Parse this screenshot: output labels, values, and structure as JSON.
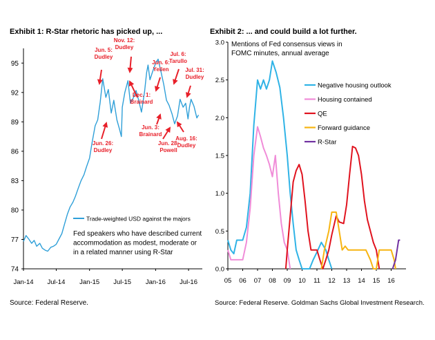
{
  "chart_data": [
    {
      "type": "line",
      "title": "Exhibit 1: R-Star rhetoric has picked up, ...",
      "source": "Source: Federal Reserve.",
      "xlabel": "",
      "ylabel": "",
      "x_ticks": [
        "Jan-14",
        "Jul-14",
        "Jan-15",
        "Jul-15",
        "Jan-16",
        "Jul-16"
      ],
      "y_ticks": [
        74,
        77,
        80,
        83,
        86,
        89,
        92,
        95
      ],
      "ylim": [
        74,
        96.5
      ],
      "xlim": [
        "2014-01-01",
        "2016-09-15"
      ],
      "grid": false,
      "legend_position": "bottom-right",
      "series": [
        {
          "name": "Trade-weighted USD against the majors",
          "color": "#2e9fd8",
          "points": [
            [
              "2014-01-01",
              76.8
            ],
            [
              "2014-01-15",
              77.4
            ],
            [
              "2014-02-01",
              77.0
            ],
            [
              "2014-02-15",
              76.6
            ],
            [
              "2014-03-01",
              76.9
            ],
            [
              "2014-03-15",
              76.3
            ],
            [
              "2014-04-01",
              76.6
            ],
            [
              "2014-04-15",
              76.1
            ],
            [
              "2014-05-01",
              75.9
            ],
            [
              "2014-05-15",
              75.8
            ],
            [
              "2014-06-01",
              76.2
            ],
            [
              "2014-06-15",
              76.3
            ],
            [
              "2014-07-01",
              76.5
            ],
            [
              "2014-07-15",
              77.0
            ],
            [
              "2014-08-01",
              77.6
            ],
            [
              "2014-08-15",
              78.5
            ],
            [
              "2014-09-01",
              79.6
            ],
            [
              "2014-09-15",
              80.3
            ],
            [
              "2014-10-01",
              80.8
            ],
            [
              "2014-10-15",
              81.4
            ],
            [
              "2014-11-01",
              82.3
            ],
            [
              "2014-11-15",
              83.0
            ],
            [
              "2014-12-01",
              83.6
            ],
            [
              "2014-12-15",
              84.4
            ],
            [
              "2015-01-01",
              85.3
            ],
            [
              "2015-01-15",
              86.9
            ],
            [
              "2015-02-01",
              88.6
            ],
            [
              "2015-02-15",
              89.2
            ],
            [
              "2015-03-01",
              91.0
            ],
            [
              "2015-03-15",
              93.4
            ],
            [
              "2015-04-01",
              91.5
            ],
            [
              "2015-04-15",
              92.3
            ],
            [
              "2015-05-01",
              89.9
            ],
            [
              "2015-05-15",
              91.2
            ],
            [
              "2015-06-01",
              89.2
            ],
            [
              "2015-06-15",
              88.3
            ],
            [
              "2015-06-26",
              87.5
            ],
            [
              "2015-07-01",
              90.5
            ],
            [
              "2015-07-15",
              92.0
            ],
            [
              "2015-08-01",
              93.2
            ],
            [
              "2015-08-15",
              90.9
            ],
            [
              "2015-09-01",
              91.5
            ],
            [
              "2015-09-15",
              92.2
            ],
            [
              "2015-10-01",
              91.1
            ],
            [
              "2015-10-15",
              90.0
            ],
            [
              "2015-11-01",
              92.1
            ],
            [
              "2015-11-12",
              94.0
            ],
            [
              "2015-11-20",
              94.8
            ],
            [
              "2015-12-01",
              93.3
            ],
            [
              "2015-12-15",
              94.1
            ],
            [
              "2016-01-01",
              95.0
            ],
            [
              "2016-01-15",
              95.4
            ],
            [
              "2016-02-01",
              94.0
            ],
            [
              "2016-02-15",
              92.8
            ],
            [
              "2016-03-01",
              91.2
            ],
            [
              "2016-03-15",
              90.7
            ],
            [
              "2016-04-01",
              89.8
            ],
            [
              "2016-04-15",
              88.8
            ],
            [
              "2016-05-01",
              89.6
            ],
            [
              "2016-05-15",
              91.3
            ],
            [
              "2016-06-01",
              90.5
            ],
            [
              "2016-06-15",
              90.9
            ],
            [
              "2016-06-28",
              89.3
            ],
            [
              "2016-07-06",
              90.5
            ],
            [
              "2016-07-15",
              91.3
            ],
            [
              "2016-07-31",
              90.6
            ],
            [
              "2016-08-16",
              89.4
            ],
            [
              "2016-08-25",
              89.7
            ]
          ]
        }
      ],
      "annotations": [
        {
          "lines": [
            "Jun. 5:",
            "Dudley"
          ],
          "arrow": "down"
        },
        {
          "lines": [
            "Nov. 12:",
            "Dudley"
          ],
          "arrow": "down"
        },
        {
          "lines": [
            "Dec. 1:",
            "Brainard"
          ],
          "arrow": "up"
        },
        {
          "lines": [
            "Jun. 26:",
            "Dudley"
          ],
          "arrow": "up"
        },
        {
          "lines": [
            "Jun. 6:",
            "Yellen"
          ],
          "arrow": "down"
        },
        {
          "lines": [
            "Jul. 6:",
            "Tarullo"
          ],
          "arrow": "down"
        },
        {
          "lines": [
            "Jul. 31:",
            "Dudley"
          ],
          "arrow": "down"
        },
        {
          "lines": [
            "Jun. 3:",
            "Brainard"
          ],
          "arrow": "up"
        },
        {
          "lines": [
            "Jun. 28:",
            "Powell"
          ],
          "arrow": "up"
        },
        {
          "lines": [
            "Aug. 16:",
            "Dudley"
          ],
          "arrow": "up"
        }
      ],
      "annotation_color": "#e8202a",
      "note": "Fed speakers who have described current accommodation as modest, moderate or in a related manner using R-Star",
      "note_lines": [
        "Fed speakers who have described current",
        "accommodation as modest, moderate or",
        "in a related manner using R-Star"
      ]
    },
    {
      "type": "line",
      "title": "Exhibit 2: ... and could build a lot further.",
      "source": "Source: Federal Reserve. Goldman Sachs Global Investment Research.",
      "subtitle_lines": [
        "Mentions of Fed consensus views in",
        "FOMC minutes, annual average"
      ],
      "xlabel": "",
      "ylabel": "",
      "x_ticks": [
        "05",
        "06",
        "07",
        "08",
        "09",
        "10",
        "11",
        "12",
        "13",
        "14",
        "15",
        "16"
      ],
      "y_ticks": [
        "0.0",
        "0.5",
        "1.0",
        "1.5",
        "2.0",
        "2.5",
        "3.0"
      ],
      "ylim": [
        0,
        3.0
      ],
      "xlim": [
        2005,
        2017
      ],
      "grid": false,
      "legend_position": "top-right",
      "series": [
        {
          "name": "Negative housing outlook",
          "color": "#2fb3e6",
          "points": [
            [
              2005,
              0.38
            ],
            [
              2005.2,
              0.25
            ],
            [
              2005.4,
              0.2
            ],
            [
              2005.6,
              0.38
            ],
            [
              2005.8,
              0.38
            ],
            [
              2006,
              0.38
            ],
            [
              2006.25,
              0.55
            ],
            [
              2006.5,
              1.0
            ],
            [
              2006.75,
              1.9
            ],
            [
              2007,
              2.5
            ],
            [
              2007.2,
              2.38
            ],
            [
              2007.4,
              2.5
            ],
            [
              2007.6,
              2.38
            ],
            [
              2007.8,
              2.5
            ],
            [
              2008,
              2.75
            ],
            [
              2008.25,
              2.6
            ],
            [
              2008.5,
              2.4
            ],
            [
              2008.75,
              2.0
            ],
            [
              2009,
              1.5
            ],
            [
              2009.2,
              1.0
            ],
            [
              2009.4,
              0.6
            ],
            [
              2009.6,
              0.25
            ],
            [
              2009.8,
              0.12
            ],
            [
              2010,
              0
            ],
            [
              2010.5,
              0
            ],
            [
              2010.75,
              0.12
            ],
            [
              2011,
              0.22
            ],
            [
              2011.3,
              0.35
            ],
            [
              2011.6,
              0.25
            ],
            [
              2011.8,
              0.12
            ],
            [
              2012,
              0
            ]
          ]
        },
        {
          "name": "Housing contained",
          "color": "#f08cd8",
          "points": [
            [
              2005,
              0.25
            ],
            [
              2005.2,
              0.12
            ],
            [
              2005.5,
              0.12
            ],
            [
              2005.8,
              0.12
            ],
            [
              2006,
              0.12
            ],
            [
              2006.25,
              0.35
            ],
            [
              2006.5,
              0.8
            ],
            [
              2006.75,
              1.5
            ],
            [
              2007,
              1.88
            ],
            [
              2007.2,
              1.75
            ],
            [
              2007.4,
              1.6
            ],
            [
              2007.6,
              1.5
            ],
            [
              2007.8,
              1.38
            ],
            [
              2008,
              1.22
            ],
            [
              2008.2,
              1.5
            ],
            [
              2008.4,
              1.0
            ],
            [
              2008.6,
              0.6
            ],
            [
              2008.8,
              0.35
            ],
            [
              2009,
              0.25
            ],
            [
              2009.2,
              0
            ]
          ]
        },
        {
          "name": "QE",
          "color": "#e0121e",
          "points": [
            [
              2008.9,
              0
            ],
            [
              2009,
              0.25
            ],
            [
              2009.2,
              0.7
            ],
            [
              2009.4,
              1.15
            ],
            [
              2009.6,
              1.3
            ],
            [
              2009.8,
              1.38
            ],
            [
              2010,
              1.25
            ],
            [
              2010.2,
              0.9
            ],
            [
              2010.4,
              0.5
            ],
            [
              2010.6,
              0.25
            ],
            [
              2010.8,
              0.25
            ],
            [
              2011,
              0.25
            ],
            [
              2011.2,
              0.12
            ],
            [
              2011.4,
              0
            ],
            [
              2011.6,
              0.12
            ],
            [
              2011.8,
              0.25
            ],
            [
              2012,
              0.45
            ],
            [
              2012.3,
              0.7
            ],
            [
              2012.5,
              0.62
            ],
            [
              2012.8,
              0.6
            ],
            [
              2013,
              0.85
            ],
            [
              2013.2,
              1.25
            ],
            [
              2013.4,
              1.62
            ],
            [
              2013.6,
              1.6
            ],
            [
              2013.8,
              1.5
            ],
            [
              2014,
              1.25
            ],
            [
              2014.2,
              0.9
            ],
            [
              2014.4,
              0.65
            ],
            [
              2014.6,
              0.5
            ],
            [
              2014.8,
              0.35
            ],
            [
              2015,
              0.25
            ],
            [
              2015.2,
              0
            ]
          ]
        },
        {
          "name": "Forward guidance",
          "color": "#f7b411",
          "points": [
            [
              2011.3,
              0
            ],
            [
              2011.5,
              0.25
            ],
            [
              2011.8,
              0.5
            ],
            [
              2012,
              0.75
            ],
            [
              2012.3,
              0.75
            ],
            [
              2012.5,
              0.5
            ],
            [
              2012.7,
              0.25
            ],
            [
              2012.9,
              0.3
            ],
            [
              2013.1,
              0.25
            ],
            [
              2013.4,
              0.25
            ],
            [
              2013.7,
              0.25
            ],
            [
              2014,
              0.25
            ],
            [
              2014.3,
              0.25
            ],
            [
              2014.6,
              0.12
            ],
            [
              2014.8,
              0
            ],
            [
              2015,
              0
            ],
            [
              2015.2,
              0.25
            ],
            [
              2015.5,
              0.25
            ],
            [
              2015.8,
              0.25
            ],
            [
              2016,
              0.25
            ],
            [
              2016.2,
              0.12
            ],
            [
              2016.3,
              0
            ]
          ]
        },
        {
          "name": "R-Star",
          "color": "#7030a0",
          "points": [
            [
              2016.1,
              0
            ],
            [
              2016.3,
              0.12
            ],
            [
              2016.5,
              0.38
            ],
            [
              2016.6,
              0.38
            ]
          ]
        }
      ]
    }
  ]
}
